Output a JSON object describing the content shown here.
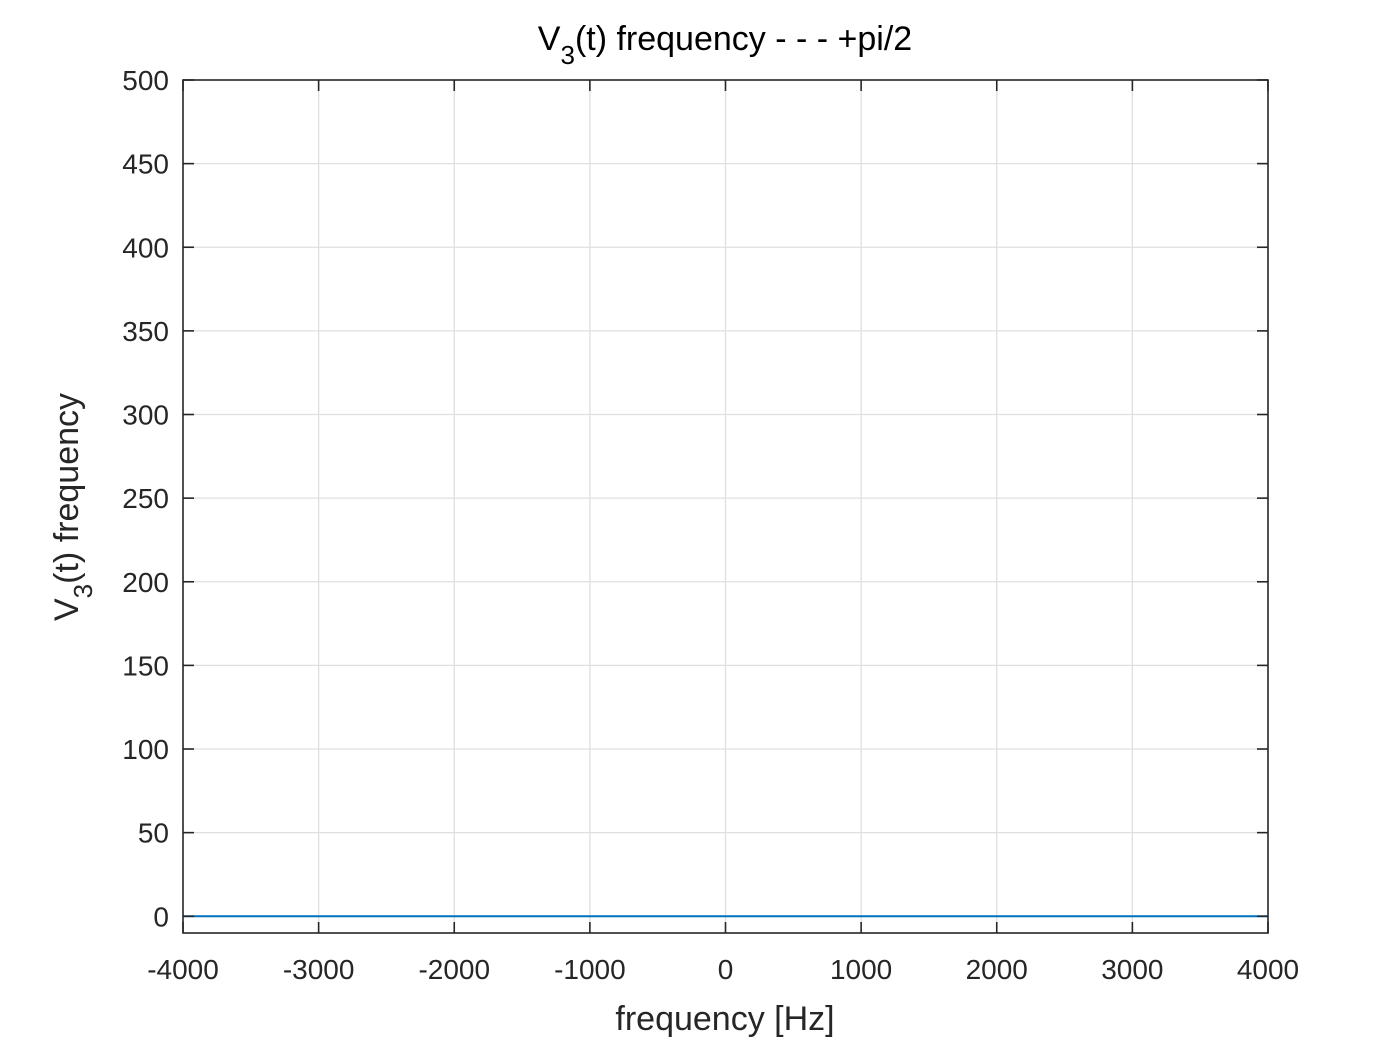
{
  "chart_data": {
    "type": "line",
    "title": {
      "base": "V",
      "sub": "3",
      "rest": "(t) frequency - - - +pi/2"
    },
    "xlabel": "frequency [Hz]",
    "ylabel": {
      "base": "V",
      "sub": "3",
      "rest": "(t) frequency"
    },
    "xlim": [
      -4000,
      4000
    ],
    "ylim": [
      -10,
      500
    ],
    "x_ticks": [
      -4000,
      -3000,
      -2000,
      -1000,
      0,
      1000,
      2000,
      3000,
      4000
    ],
    "y_ticks": [
      0,
      50,
      100,
      150,
      200,
      250,
      300,
      350,
      400,
      450,
      500
    ],
    "grid": true,
    "series": [
      {
        "color": "#0072bd",
        "x": [
          -4000,
          4000
        ],
        "y": [
          0,
          0
        ]
      }
    ]
  },
  "colors": {
    "axis": "#262626",
    "grid": "#dfdfdf",
    "background": "#ffffff"
  }
}
